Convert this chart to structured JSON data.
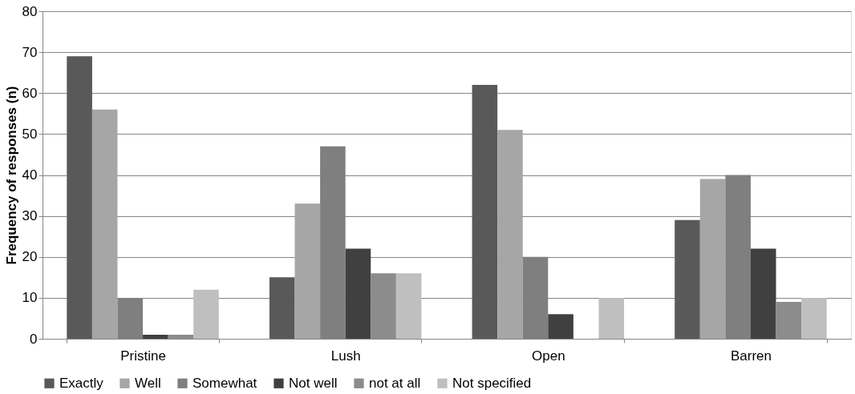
{
  "chart_data": {
    "type": "bar",
    "ylabel": "Frequency of responses (n)",
    "categories": [
      "Pristine",
      "Lush",
      "Open",
      "Barren"
    ],
    "series": [
      {
        "name": "Exactly",
        "color": "#595959",
        "values": [
          69,
          15,
          62,
          29
        ]
      },
      {
        "name": "Well",
        "color": "#a6a6a6",
        "values": [
          56,
          33,
          51,
          39
        ]
      },
      {
        "name": "Somewhat",
        "color": "#7f7f7f",
        "values": [
          10,
          47,
          20,
          40
        ]
      },
      {
        "name": "Not well",
        "color": "#404040",
        "values": [
          1,
          22,
          6,
          22
        ]
      },
      {
        "name": "not at all",
        "color": "#8c8c8c",
        "values": [
          1,
          16,
          0,
          9
        ]
      },
      {
        "name": "Not specified",
        "color": "#bfbfbf",
        "values": [
          12,
          16,
          10,
          10
        ]
      }
    ],
    "ylim": [
      0,
      80
    ],
    "yticks": [
      0,
      10,
      20,
      30,
      40,
      50,
      60,
      70,
      80
    ],
    "grid": "y",
    "legend": "bottom"
  }
}
